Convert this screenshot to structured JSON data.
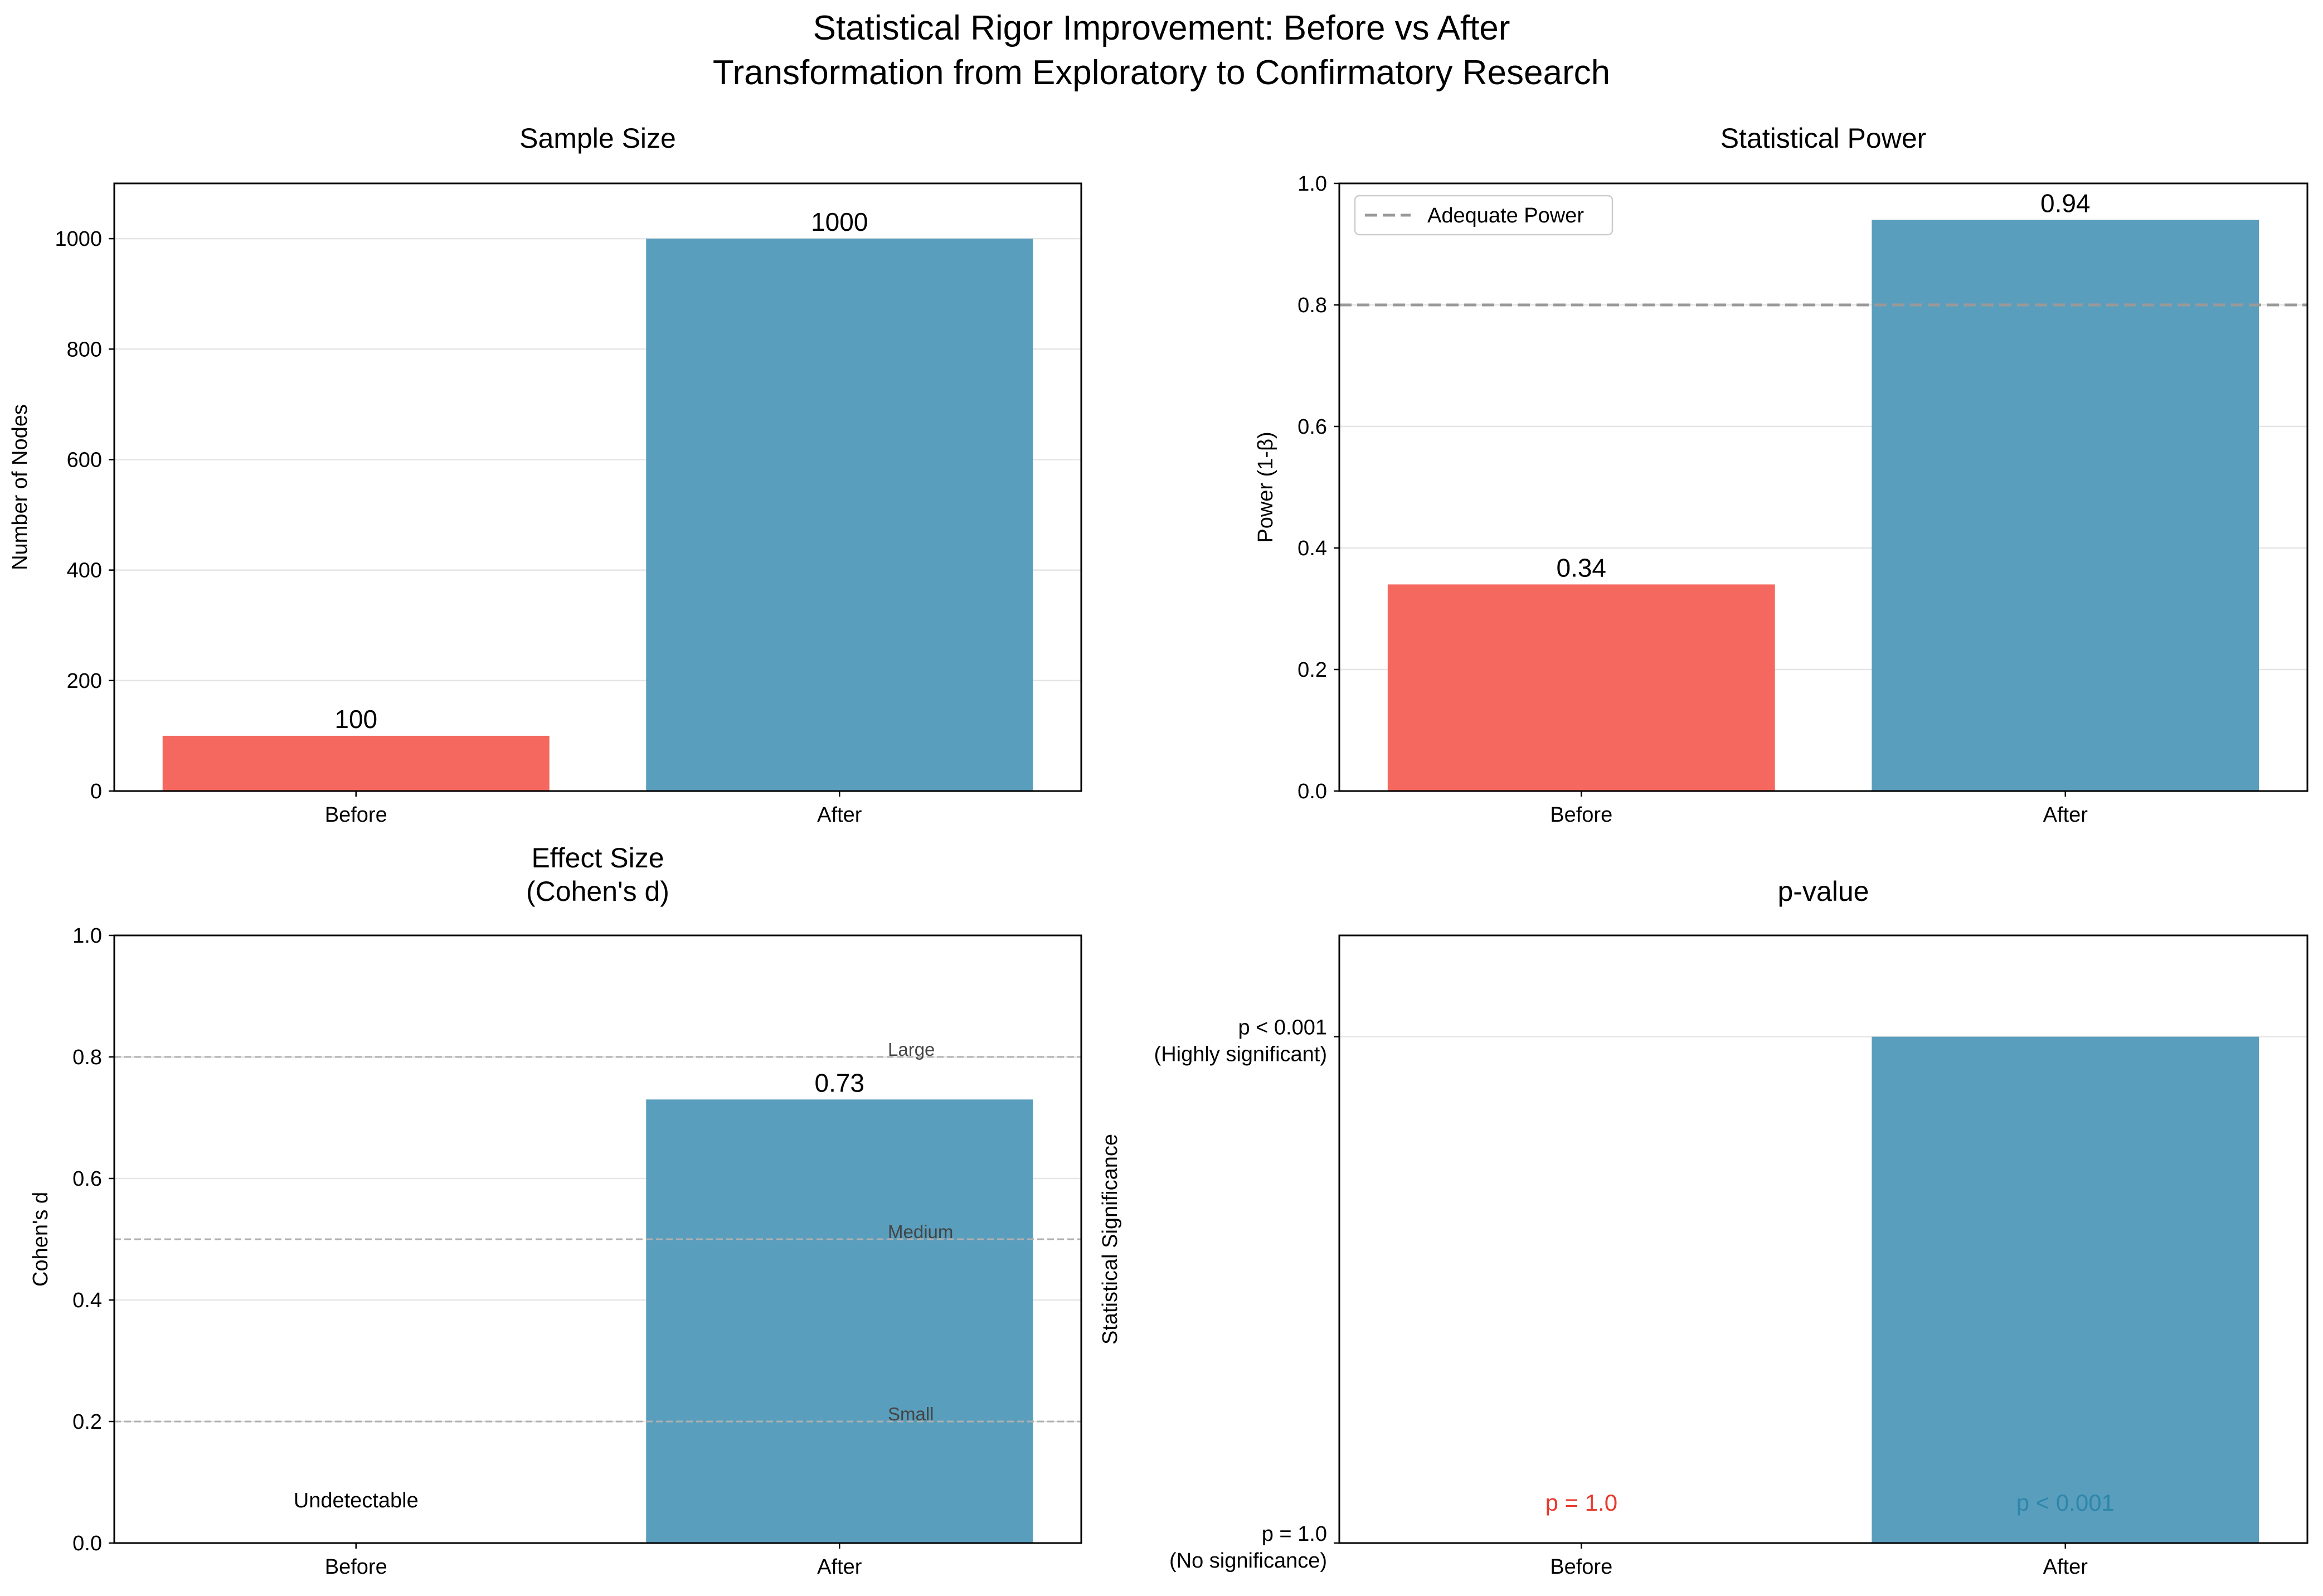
{
  "figure": {
    "title_line1": "Statistical Rigor Improvement: Before vs After",
    "title_line2": "Transformation from Exploratory to Confirmatory Research"
  },
  "colors": {
    "before": "#f4685f",
    "after": "#5a9ebd",
    "grid": "#e5e5e5",
    "refline": "#a0a0a0",
    "before_text": "#e8392f",
    "after_text": "#2e86ab"
  },
  "chart_data": [
    {
      "type": "bar",
      "title": "Sample Size",
      "categories": [
        "Before",
        "After"
      ],
      "values": [
        100,
        1000
      ],
      "value_labels": [
        "100",
        "1000"
      ],
      "ylabel": "Number of Nodes",
      "ylim": [
        0,
        1100
      ],
      "yticks": [
        0,
        200,
        400,
        600,
        800,
        1000
      ],
      "ytick_labels": [
        "0",
        "200",
        "400",
        "600",
        "800",
        "1000"
      ],
      "grid": true
    },
    {
      "type": "bar",
      "title": "Statistical Power",
      "categories": [
        "Before",
        "After"
      ],
      "values": [
        0.34,
        0.94
      ],
      "value_labels": [
        "0.34",
        "0.94"
      ],
      "ylabel": "Power (1-β)",
      "ylim": [
        0,
        1.0
      ],
      "yticks": [
        0,
        0.2,
        0.4,
        0.6,
        0.8,
        1.0
      ],
      "ytick_labels": [
        "0.0",
        "0.2",
        "0.4",
        "0.6",
        "0.8",
        "1.0"
      ],
      "grid": true,
      "reference_lines": [
        {
          "y": 0.8,
          "label": "Adequate Power"
        }
      ],
      "legend": {
        "placement": "top-left",
        "entries": [
          "Adequate Power"
        ]
      }
    },
    {
      "type": "bar",
      "title_line1": "Effect Size",
      "title_line2": "(Cohen's d)",
      "categories": [
        "Before",
        "After"
      ],
      "values": [
        0,
        0.73
      ],
      "value_labels": [
        "Undetectable",
        "0.73"
      ],
      "ylabel": "Cohen's d",
      "ylim": [
        0,
        1.0
      ],
      "yticks": [
        0,
        0.2,
        0.4,
        0.6,
        0.8,
        1.0
      ],
      "ytick_labels": [
        "0.0",
        "0.2",
        "0.4",
        "0.6",
        "0.8",
        "1.0"
      ],
      "grid": true,
      "reference_lines": [
        {
          "y": 0.2,
          "label": "Small"
        },
        {
          "y": 0.5,
          "label": "Medium"
        },
        {
          "y": 0.8,
          "label": "Large"
        }
      ]
    },
    {
      "type": "bar",
      "title": "p-value",
      "categories": [
        "Before",
        "After"
      ],
      "values": [
        0,
        1
      ],
      "value_labels": [
        "p = 1.0",
        "p < 0.001"
      ],
      "ylabel": "Statistical Significance",
      "ylim": [
        0,
        1.2
      ],
      "yticks": [
        0,
        1
      ],
      "ytick_labels": [
        [
          "p = 1.0",
          "(No significance)"
        ],
        [
          "p < 0.001",
          "(Highly significant)"
        ]
      ],
      "grid": true
    }
  ]
}
